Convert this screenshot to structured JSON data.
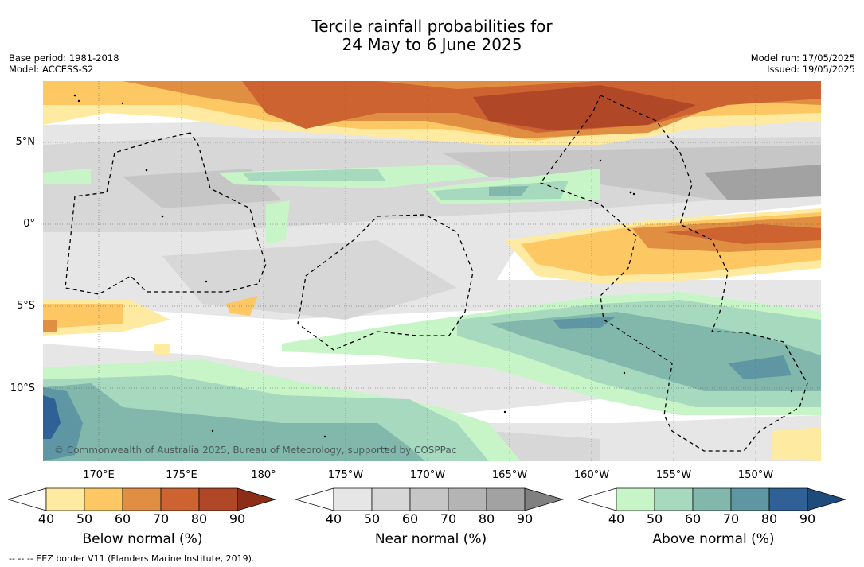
{
  "title_line1": "Tercile rainfall probabilities for",
  "title_line2": "24 May to 6 June 2025",
  "base_period": "Base period: 1981-2018",
  "model": "Model: ACCESS-S2",
  "model_run": "Model run: 17/05/2025",
  "issued": "Issued: 19/05/2025",
  "copyright": "© Commonwealth of Australia 2025, Bureau of Meteorology, supported by COSPPac",
  "lat_labels": [
    "5°N",
    "0°",
    "5°S",
    "10°S"
  ],
  "lon_labels": [
    "170°E",
    "175°E",
    "180°",
    "175°W",
    "170°W",
    "165°W",
    "160°W",
    "155°W",
    "150°W"
  ],
  "colorbars": [
    {
      "label": "Below normal (%)",
      "ticks": [
        "40",
        "50",
        "60",
        "70",
        "80",
        "90"
      ],
      "colors": [
        "#ffffff",
        "#feeaa0",
        "#fdc863",
        "#e08f42",
        "#cd6330",
        "#b04828",
        "#8c2d18"
      ]
    },
    {
      "label": "Near normal (%)",
      "ticks": [
        "40",
        "50",
        "60",
        "70",
        "80",
        "90"
      ],
      "colors": [
        "#ffffff",
        "#e6e6e6",
        "#d7d7d7",
        "#c6c6c6",
        "#b4b4b4",
        "#a2a2a2",
        "#808080"
      ]
    },
    {
      "label": "Above normal (%)",
      "ticks": [
        "40",
        "50",
        "60",
        "70",
        "80",
        "90"
      ],
      "colors": [
        "#ffffff",
        "#c8f5c8",
        "#a6d9bd",
        "#82b8ab",
        "#5f96a4",
        "#2f6096",
        "#1f4a7c"
      ]
    }
  ],
  "footer": "-- -- -- EEZ border V11 (Flanders Marine Institute, 2019)."
}
